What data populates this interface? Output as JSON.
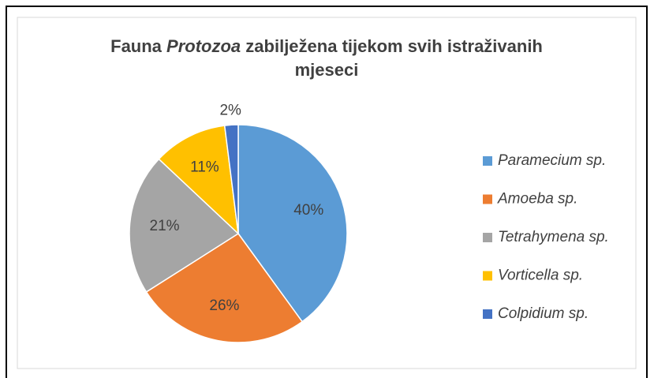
{
  "chart_data": {
    "type": "pie",
    "title": [
      "Fauna",
      "Protozoa",
      "zabilježena tijekom svih istraživanih",
      "mjeseci"
    ],
    "categories": [
      "Paramecium sp.",
      "Amoeba sp.",
      "Tetrahymena sp.",
      "Vorticella sp.",
      "Colpidium sp."
    ],
    "values": [
      40,
      26,
      21,
      11,
      2
    ],
    "value_labels": [
      "40%",
      "26%",
      "21%",
      "11%",
      "2%"
    ],
    "colors": [
      "#5b9bd5",
      "#ed7d31",
      "#a5a5a5",
      "#ffc000",
      "#4472c4"
    ],
    "legend": "right"
  }
}
